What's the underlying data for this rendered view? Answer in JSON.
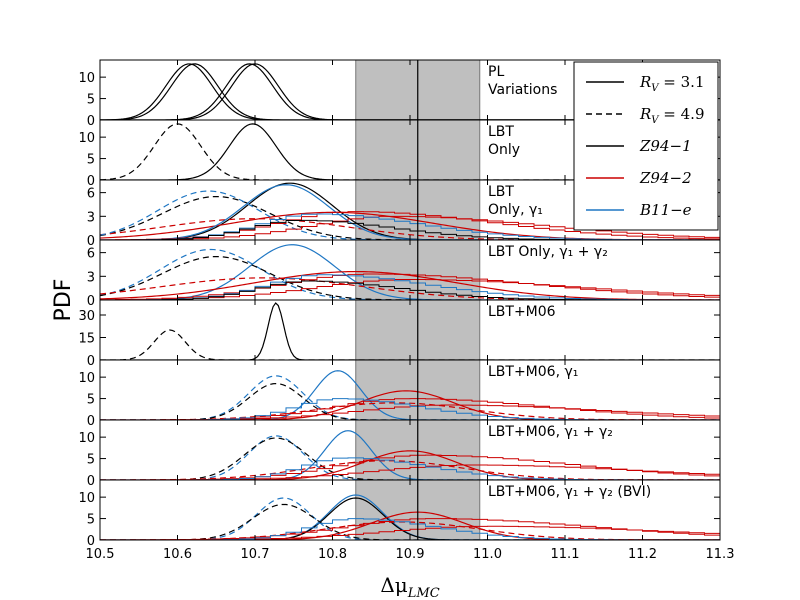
{
  "chart_data": {
    "type": "line",
    "xlabel": "Δμ_LMC",
    "ylabel": "PDF",
    "xlim": [
      10.5,
      11.3
    ],
    "xticks": [
      "10.5",
      "10.6",
      "10.7",
      "10.8",
      "10.9",
      "11.0",
      "11.1",
      "11.2",
      "11.3"
    ],
    "band": {
      "from": 10.83,
      "to": 10.99,
      "center": 10.91,
      "color": "#bfbfbf"
    },
    "colors": {
      "Z94-1": "#000000",
      "Z94-2": "#cc0000",
      "B11-e": "#1f77c4"
    },
    "legend": [
      {
        "label": "R_V = 3.1",
        "style": "solid",
        "color": "#000000"
      },
      {
        "label": "R_V = 4.9",
        "style": "dashed",
        "color": "#000000"
      },
      {
        "label": "Z94−1",
        "style": "solid",
        "color": "#000000"
      },
      {
        "label": "Z94−2",
        "style": "solid",
        "color": "#cc0000"
      },
      {
        "label": "B11−e",
        "style": "solid",
        "color": "#1f77c4"
      }
    ],
    "panels": [
      {
        "label": [
          "PL",
          "Variations"
        ],
        "ylim": [
          0,
          14
        ],
        "yticks": [
          0,
          5,
          10
        ],
        "series": [
          {
            "model": "Z94-1",
            "rv": "3.1",
            "shape": "gauss",
            "mu": 10.615,
            "sigma": 0.03,
            "peak": 13.1
          },
          {
            "model": "Z94-1",
            "rv": "3.1",
            "shape": "gauss",
            "mu": 10.622,
            "sigma": 0.03,
            "peak": 13.1
          },
          {
            "model": "Z94-1",
            "rv": "3.1",
            "shape": "gauss",
            "mu": 10.693,
            "sigma": 0.03,
            "peak": 13.1
          },
          {
            "model": "Z94-1",
            "rv": "3.1",
            "shape": "gauss",
            "mu": 10.7,
            "sigma": 0.03,
            "peak": 13.1
          }
        ]
      },
      {
        "label": [
          "LBT",
          "Only"
        ],
        "ylim": [
          0,
          14
        ],
        "yticks": [
          0,
          5,
          10
        ],
        "series": [
          {
            "model": "Z94-1",
            "rv": "4.9",
            "shape": "gauss",
            "mu": 10.6,
            "sigma": 0.03,
            "peak": 13.1
          },
          {
            "model": "Z94-1",
            "rv": "3.1",
            "shape": "gauss",
            "mu": 10.697,
            "sigma": 0.03,
            "peak": 13.1
          }
        ]
      },
      {
        "label": [
          "LBT",
          "Only, γ₁"
        ],
        "ylim": [
          0,
          7.6
        ],
        "yticks": [
          0,
          3,
          6
        ],
        "series": [
          {
            "model": "Z94-1",
            "rv": "3.1",
            "shape": "gauss",
            "mu": 10.745,
            "sigma": 0.055,
            "peak": 7.2
          },
          {
            "model": "Z94-1",
            "rv": "4.9",
            "shape": "gauss",
            "mu": 10.65,
            "sigma": 0.07,
            "peak": 5.5
          },
          {
            "model": "Z94-2",
            "rv": "3.1",
            "shape": "gauss",
            "mu": 10.8,
            "sigma": 0.13,
            "peak": 3.5
          },
          {
            "model": "Z94-2",
            "rv": "4.9",
            "shape": "gauss",
            "mu": 10.7,
            "sigma": 0.12,
            "peak": 2.7
          },
          {
            "model": "B11-e",
            "rv": "3.1",
            "shape": "gauss",
            "mu": 10.74,
            "sigma": 0.055,
            "peak": 7.0
          },
          {
            "model": "B11-e",
            "rv": "4.9",
            "shape": "gauss",
            "mu": 10.64,
            "sigma": 0.065,
            "peak": 6.2
          },
          {
            "model": "Z94-2",
            "rv": "3.1",
            "shape": "hist",
            "mu": 10.83,
            "sigma": 0.12,
            "peak": 3.6
          },
          {
            "model": "Z94-2",
            "rv": "3.1",
            "shape": "hist",
            "mu": 10.88,
            "sigma": 0.13,
            "peak": 3.0
          },
          {
            "model": "B11-e",
            "rv": "3.1",
            "shape": "hist",
            "mu": 10.78,
            "sigma": 0.09,
            "peak": 3.3
          },
          {
            "model": "Z94-1",
            "rv": "3.1",
            "shape": "hist",
            "mu": 10.76,
            "sigma": 0.08,
            "peak": 2.5
          }
        ]
      },
      {
        "label": [
          "LBT Only, γ₁ + γ₂"
        ],
        "ylim": [
          0,
          7.6
        ],
        "yticks": [
          0,
          3,
          6
        ],
        "series": [
          {
            "model": "B11-e",
            "rv": "3.1",
            "shape": "gauss",
            "mu": 10.748,
            "sigma": 0.055,
            "peak": 7.0
          },
          {
            "model": "B11-e",
            "rv": "4.9",
            "shape": "gauss",
            "mu": 10.643,
            "sigma": 0.065,
            "peak": 6.4
          },
          {
            "model": "Z94-1",
            "rv": "4.9",
            "shape": "gauss",
            "mu": 10.65,
            "sigma": 0.07,
            "peak": 5.5
          },
          {
            "model": "Z94-2",
            "rv": "3.1",
            "shape": "gauss",
            "mu": 10.83,
            "sigma": 0.13,
            "peak": 3.6
          },
          {
            "model": "Z94-2",
            "rv": "4.9",
            "shape": "gauss",
            "mu": 10.71,
            "sigma": 0.13,
            "peak": 2.8
          },
          {
            "model": "Z94-2",
            "rv": "3.1",
            "shape": "hist",
            "mu": 10.85,
            "sigma": 0.14,
            "peak": 3.3
          },
          {
            "model": "Z94-2",
            "rv": "3.1",
            "shape": "hist",
            "mu": 10.9,
            "sigma": 0.15,
            "peak": 2.6
          },
          {
            "model": "B11-e",
            "rv": "3.1",
            "shape": "hist",
            "mu": 10.79,
            "sigma": 0.09,
            "peak": 3.2
          },
          {
            "model": "Z94-1",
            "rv": "3.1",
            "shape": "hist",
            "mu": 10.77,
            "sigma": 0.08,
            "peak": 2.4
          }
        ]
      },
      {
        "label": [
          "LBT+M06"
        ],
        "ylim": [
          0,
          40
        ],
        "yticks": [
          0,
          15,
          30
        ],
        "series": [
          {
            "model": "Z94-1",
            "rv": "4.9",
            "shape": "gauss",
            "mu": 10.59,
            "sigma": 0.02,
            "peak": 20
          },
          {
            "model": "Z94-1",
            "rv": "3.1",
            "shape": "gauss",
            "mu": 10.727,
            "sigma": 0.01,
            "peak": 38
          }
        ]
      },
      {
        "label": [
          "LBT+M06, γ₁"
        ],
        "ylim": [
          0,
          14
        ],
        "yticks": [
          0,
          5,
          10
        ],
        "series": [
          {
            "model": "B11-e",
            "rv": "3.1",
            "shape": "gauss",
            "mu": 10.807,
            "sigma": 0.03,
            "peak": 11.5
          },
          {
            "model": "B11-e",
            "rv": "4.9",
            "shape": "gauss",
            "mu": 10.727,
            "sigma": 0.035,
            "peak": 10.3
          },
          {
            "model": "Z94-2",
            "rv": "3.1",
            "shape": "gauss",
            "mu": 10.895,
            "sigma": 0.06,
            "peak": 6.8
          },
          {
            "model": "Z94-2",
            "rv": "4.9",
            "shape": "gauss",
            "mu": 10.88,
            "sigma": 0.1,
            "peak": 4.0
          },
          {
            "model": "Z94-1",
            "rv": "4.9",
            "shape": "gauss",
            "mu": 10.727,
            "sigma": 0.035,
            "peak": 8.5
          },
          {
            "model": "Z94-2",
            "rv": "3.1",
            "shape": "hist",
            "mu": 10.9,
            "sigma": 0.12,
            "peak": 5.0
          },
          {
            "model": "Z94-2",
            "rv": "3.1",
            "shape": "hist",
            "mu": 10.95,
            "sigma": 0.14,
            "peak": 3.5
          },
          {
            "model": "B11-e",
            "rv": "3.1",
            "shape": "hist",
            "mu": 10.81,
            "sigma": 0.07,
            "peak": 5.0
          }
        ]
      },
      {
        "label": [
          "LBT+M06, γ₁ + γ₂"
        ],
        "ylim": [
          0,
          14
        ],
        "yticks": [
          0,
          5,
          10
        ],
        "series": [
          {
            "model": "B11-e",
            "rv": "3.1",
            "shape": "gauss",
            "mu": 10.82,
            "sigma": 0.03,
            "peak": 11.5
          },
          {
            "model": "B11-e",
            "rv": "4.9",
            "shape": "gauss",
            "mu": 10.727,
            "sigma": 0.035,
            "peak": 10.3
          },
          {
            "model": "Z94-1",
            "rv": "4.9",
            "shape": "gauss",
            "mu": 10.727,
            "sigma": 0.04,
            "peak": 9.8
          },
          {
            "model": "Z94-2",
            "rv": "3.1",
            "shape": "gauss",
            "mu": 10.9,
            "sigma": 0.06,
            "peak": 6.8
          },
          {
            "model": "Z94-2",
            "rv": "4.9",
            "shape": "gauss",
            "mu": 10.87,
            "sigma": 0.1,
            "peak": 4.5
          },
          {
            "model": "Z94-2",
            "rv": "3.1",
            "shape": "hist",
            "mu": 10.92,
            "sigma": 0.13,
            "peak": 5.8
          },
          {
            "model": "Z94-2",
            "rv": "3.1",
            "shape": "hist",
            "mu": 10.98,
            "sigma": 0.15,
            "peak": 3.5
          },
          {
            "model": "B11-e",
            "rv": "3.1",
            "shape": "hist",
            "mu": 10.82,
            "sigma": 0.07,
            "peak": 5.2
          }
        ]
      },
      {
        "label": [
          "LBT+M06, γ₁ + γ₂ (BVI)"
        ],
        "ylim": [
          0,
          14
        ],
        "yticks": [
          0,
          5,
          10
        ],
        "series": [
          {
            "model": "B11-e",
            "rv": "3.1",
            "shape": "gauss",
            "mu": 10.83,
            "sigma": 0.035,
            "peak": 10.5
          },
          {
            "model": "Z94-1",
            "rv": "3.1",
            "shape": "gauss",
            "mu": 10.83,
            "sigma": 0.035,
            "peak": 9.8
          },
          {
            "model": "B11-e",
            "rv": "4.9",
            "shape": "gauss",
            "mu": 10.737,
            "sigma": 0.035,
            "peak": 9.8
          },
          {
            "model": "Z94-1",
            "rv": "4.9",
            "shape": "gauss",
            "mu": 10.737,
            "sigma": 0.04,
            "peak": 8.3
          },
          {
            "model": "Z94-2",
            "rv": "3.1",
            "shape": "gauss",
            "mu": 10.91,
            "sigma": 0.06,
            "peak": 6.5
          },
          {
            "model": "Z94-2",
            "rv": "4.9",
            "shape": "gauss",
            "mu": 10.89,
            "sigma": 0.1,
            "peak": 4.2
          },
          {
            "model": "Z94-2",
            "rv": "3.1",
            "shape": "hist",
            "mu": 10.93,
            "sigma": 0.14,
            "peak": 5.0
          },
          {
            "model": "Z94-2",
            "rv": "3.1",
            "shape": "hist",
            "mu": 11.0,
            "sigma": 0.16,
            "peak": 3.2
          },
          {
            "model": "B11-e",
            "rv": "3.1",
            "shape": "hist",
            "mu": 10.83,
            "sigma": 0.07,
            "peak": 5.0
          }
        ]
      }
    ]
  }
}
